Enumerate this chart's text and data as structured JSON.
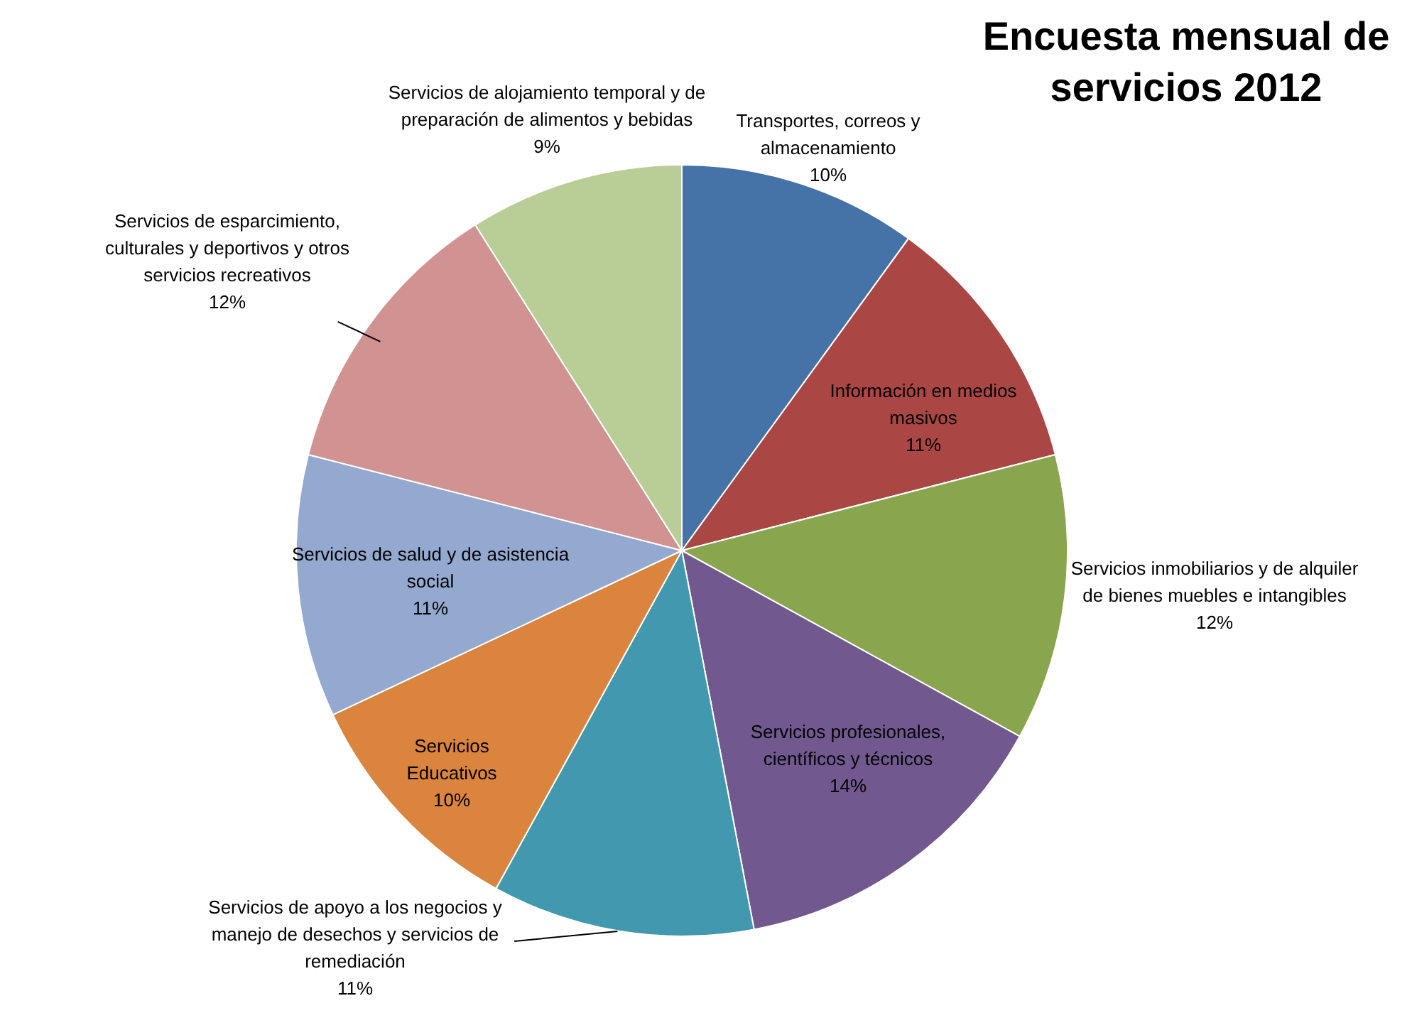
{
  "chart_data": {
    "type": "pie",
    "title": "Encuesta mensual de servicios 2012",
    "categories": [
      "Transportes, correos y almacenamiento",
      "Información en medios masivos",
      "Servicios inmobiliarios y de alquiler de bienes muebles e intangibles",
      "Servicios profesionales, científicos y técnicos",
      "Servicios de apoyo a los negocios y manejo de desechos y servicios de remediación",
      "Servicios Educativos",
      "Servicios de salud y de asistencia social",
      "Servicios de esparcimiento, culturales y deportivos y otros servicios recreativos",
      "Servicios de alojamiento temporal y de preparación de alimentos y bebidas"
    ],
    "values": [
      10,
      11,
      12,
      14,
      11,
      10,
      11,
      12,
      9
    ],
    "colors": [
      "#4572a7",
      "#aa4643",
      "#89a54e",
      "#71588f",
      "#4198af",
      "#db843d",
      "#93a9cf",
      "#d19392",
      "#b9cd96"
    ],
    "value_labels": [
      "10%",
      "11%",
      "12%",
      "14%",
      "11%",
      "10%",
      "11%",
      "12%",
      "9%"
    ],
    "legend": false
  }
}
